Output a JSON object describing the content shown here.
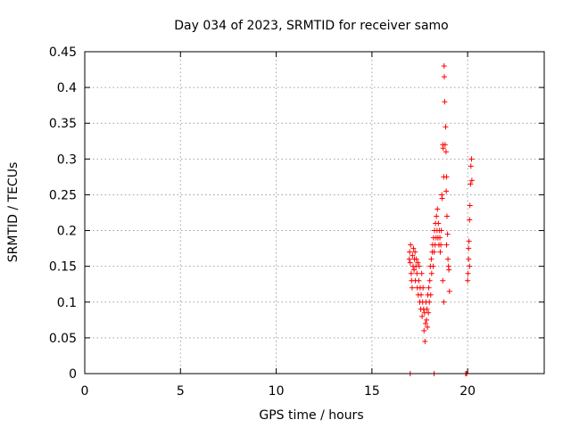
{
  "chart_data": {
    "type": "scatter",
    "title": "Day 034 of 2023, SRMTID for receiver samo",
    "xlabel": "GPS time / hours",
    "ylabel": "SRMTID / TECUs",
    "xlim": [
      0,
      24
    ],
    "ylim": [
      0,
      0.45
    ],
    "xticks": [
      0,
      5,
      10,
      15,
      20
    ],
    "xtick_labels": [
      "0",
      "5",
      "10",
      "15",
      "20"
    ],
    "yticks": [
      0,
      0.05,
      0.1,
      0.15,
      0.2,
      0.25,
      0.3,
      0.35,
      0.4,
      0.45
    ],
    "ytick_labels": [
      "0",
      "0.05",
      "0.1",
      "0.15",
      "0.2",
      "0.25",
      "0.3",
      "0.35",
      "0.4",
      "0.45"
    ],
    "grid": true,
    "marker": "plus",
    "series": [
      {
        "name": "SRMTID",
        "color": "#ff0000",
        "points": [
          [
            17.0,
            0.0
          ],
          [
            18.25,
            0.0
          ],
          [
            19.9,
            0.0
          ],
          [
            19.95,
            0.0
          ],
          [
            16.95,
            0.16
          ],
          [
            16.97,
            0.17
          ],
          [
            17.0,
            0.155
          ],
          [
            17.02,
            0.18
          ],
          [
            17.05,
            0.14
          ],
          [
            17.07,
            0.13
          ],
          [
            17.1,
            0.12
          ],
          [
            17.12,
            0.165
          ],
          [
            17.15,
            0.15
          ],
          [
            17.17,
            0.175
          ],
          [
            17.2,
            0.145
          ],
          [
            17.22,
            0.16
          ],
          [
            17.25,
            0.17
          ],
          [
            17.27,
            0.13
          ],
          [
            17.3,
            0.15
          ],
          [
            17.32,
            0.16
          ],
          [
            17.35,
            0.14
          ],
          [
            17.37,
            0.12
          ],
          [
            17.4,
            0.155
          ],
          [
            17.42,
            0.11
          ],
          [
            17.45,
            0.13
          ],
          [
            17.47,
            0.15
          ],
          [
            17.5,
            0.1
          ],
          [
            17.52,
            0.12
          ],
          [
            17.55,
            0.09
          ],
          [
            17.57,
            0.11
          ],
          [
            17.6,
            0.14
          ],
          [
            17.62,
            0.08
          ],
          [
            17.65,
            0.1
          ],
          [
            17.67,
            0.12
          ],
          [
            17.7,
            0.09
          ],
          [
            17.72,
            0.06
          ],
          [
            17.75,
            0.085
          ],
          [
            17.77,
            0.045
          ],
          [
            17.8,
            0.07
          ],
          [
            17.82,
            0.1
          ],
          [
            17.85,
            0.075
          ],
          [
            17.87,
            0.09
          ],
          [
            17.9,
            0.065
          ],
          [
            17.92,
            0.11
          ],
          [
            17.95,
            0.085
          ],
          [
            17.97,
            0.12
          ],
          [
            18.0,
            0.1
          ],
          [
            18.02,
            0.13
          ],
          [
            18.05,
            0.15
          ],
          [
            18.07,
            0.11
          ],
          [
            18.1,
            0.16
          ],
          [
            18.12,
            0.14
          ],
          [
            18.15,
            0.17
          ],
          [
            18.17,
            0.18
          ],
          [
            18.2,
            0.15
          ],
          [
            18.22,
            0.19
          ],
          [
            18.25,
            0.17
          ],
          [
            18.27,
            0.2
          ],
          [
            18.3,
            0.18
          ],
          [
            18.32,
            0.21
          ],
          [
            18.35,
            0.19
          ],
          [
            18.37,
            0.22
          ],
          [
            18.4,
            0.2
          ],
          [
            18.42,
            0.23
          ],
          [
            18.45,
            0.19
          ],
          [
            18.47,
            0.21
          ],
          [
            18.5,
            0.18
          ],
          [
            18.52,
            0.2
          ],
          [
            18.55,
            0.19
          ],
          [
            18.57,
            0.17
          ],
          [
            18.6,
            0.18
          ],
          [
            18.62,
            0.2
          ],
          [
            18.65,
            0.25
          ],
          [
            18.67,
            0.245
          ],
          [
            18.7,
            0.32
          ],
          [
            18.72,
            0.315
          ],
          [
            18.75,
            0.275
          ],
          [
            18.77,
            0.43
          ],
          [
            18.78,
            0.415
          ],
          [
            18.8,
            0.38
          ],
          [
            18.82,
            0.32
          ],
          [
            18.85,
            0.345
          ],
          [
            18.87,
            0.31
          ],
          [
            18.88,
            0.255
          ],
          [
            18.9,
            0.275
          ],
          [
            18.92,
            0.22
          ],
          [
            18.95,
            0.195
          ],
          [
            18.97,
            0.16
          ],
          [
            19.0,
            0.15
          ],
          [
            19.02,
            0.145
          ],
          [
            19.05,
            0.115
          ],
          [
            18.7,
            0.13
          ],
          [
            18.75,
            0.1
          ],
          [
            18.9,
            0.18
          ],
          [
            20.0,
            0.13
          ],
          [
            20.02,
            0.14
          ],
          [
            20.05,
            0.16
          ],
          [
            20.07,
            0.185
          ],
          [
            20.1,
            0.215
          ],
          [
            20.12,
            0.235
          ],
          [
            20.15,
            0.265
          ],
          [
            20.17,
            0.29
          ],
          [
            20.2,
            0.3
          ],
          [
            20.22,
            0.27
          ],
          [
            20.05,
            0.175
          ],
          [
            20.1,
            0.15
          ]
        ]
      }
    ]
  }
}
